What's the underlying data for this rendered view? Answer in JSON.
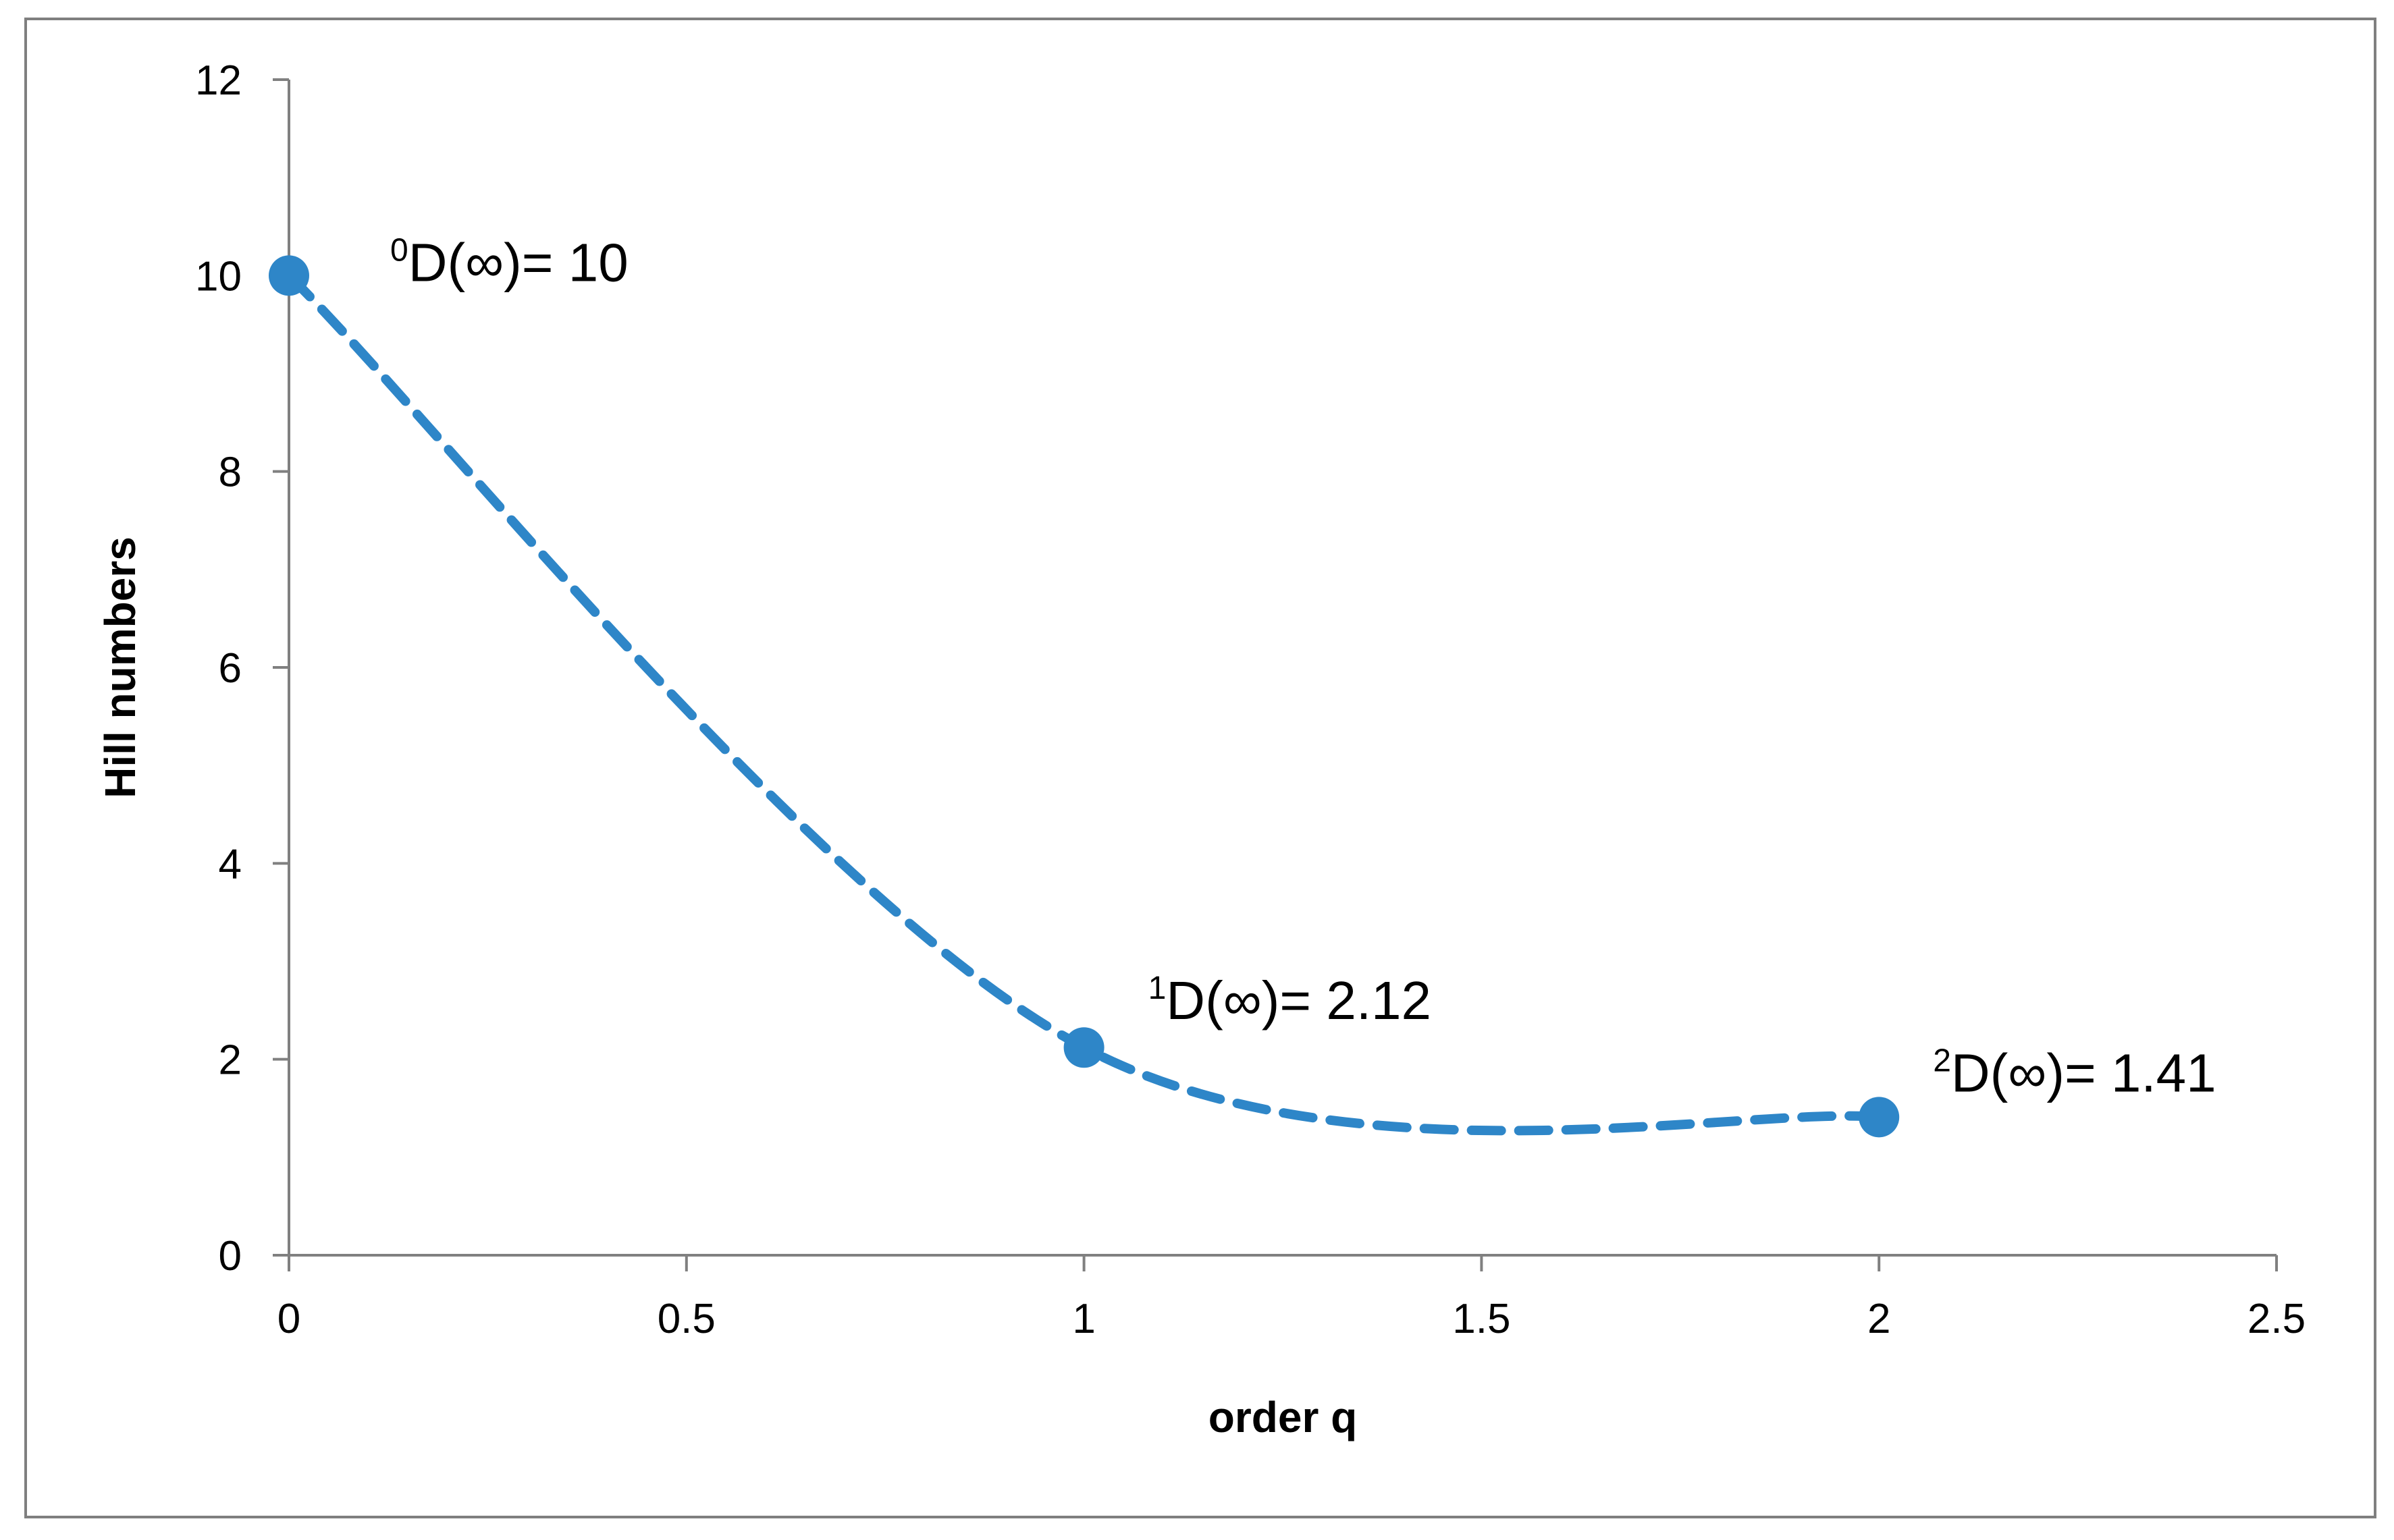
{
  "chart_data": {
    "type": "line",
    "title": "",
    "xlabel": "order q",
    "ylabel": "Hill numbers",
    "xlim": [
      0,
      2.5
    ],
    "ylim": [
      0,
      12
    ],
    "x_ticks": [
      0,
      0.5,
      1,
      1.5,
      2,
      2.5
    ],
    "x_tick_labels": [
      "0",
      "0.5",
      "1",
      "1.5",
      "2",
      "2.5"
    ],
    "y_ticks": [
      0,
      2,
      4,
      6,
      8,
      10,
      12
    ],
    "y_tick_labels": [
      "0",
      "2",
      "4",
      "6",
      "8",
      "10",
      "12"
    ],
    "grid": false,
    "legend": "none",
    "line_style": "dashed-smooth",
    "series": [
      {
        "color": "#2E86C8",
        "x": [
          0,
          1,
          2
        ],
        "values": [
          10,
          2.12,
          1.41
        ]
      }
    ],
    "annotations": [
      {
        "sup": "0",
        "text": "D(∞)= 10"
      },
      {
        "sup": "1",
        "text": "D(∞)= 2.12"
      },
      {
        "sup": "2",
        "text": "D(∞)= 1.41"
      }
    ],
    "colors": {
      "series": "#2E86C8",
      "axis": "#808080",
      "frame": "#7f7f7f"
    }
  }
}
